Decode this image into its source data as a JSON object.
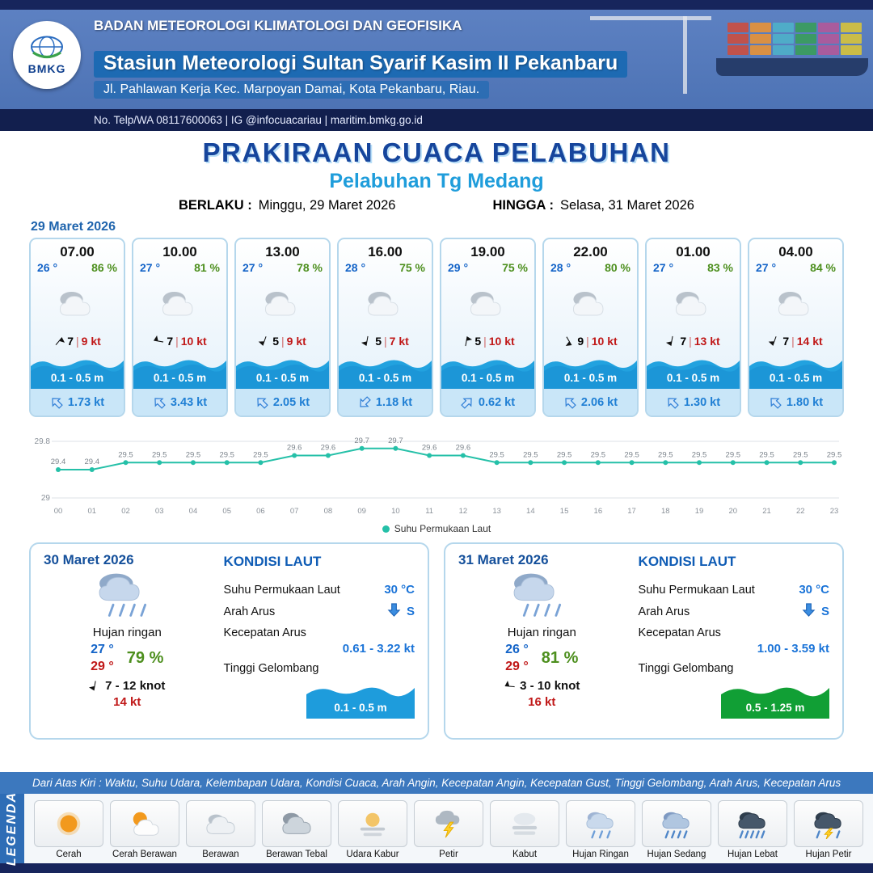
{
  "header": {
    "logo_label": "BMKG",
    "org": "BADAN METEOROLOGI KLIMATOLOGI DAN GEOFISIKA",
    "station": "Stasiun Meteorologi Sultan Syarif Kasim II Pekanbaru",
    "address": "Jl. Pahlawan Kerja Kec. Marpoyan Damai, Kota Pekanbaru, Riau.",
    "contact": "No. Telp/WA 08117600063 | IG @infocuacariau | maritim.bmkg.go.id"
  },
  "title": {
    "main": "PRAKIRAAN CUACA PELABUHAN",
    "sub": "Pelabuhan Tg Medang",
    "berlaku_label": "BERLAKU :",
    "berlaku_value": "Minggu, 29 Maret 2026",
    "hingga_label": "HINGGA :",
    "hingga_value": "Selasa, 31 Maret 2026"
  },
  "forecast_date": "29 Maret 2026",
  "hourly": [
    {
      "time": "07.00",
      "temp": "26 °",
      "humidity": "86 %",
      "wind_speed": "7",
      "gust": "9 kt",
      "wave": "0.1 - 0.5 m",
      "current": "1.73 kt",
      "wind_dir_deg": 40,
      "current_dir_deg": 315
    },
    {
      "time": "10.00",
      "temp": "27 °",
      "humidity": "81 %",
      "wind_speed": "7",
      "gust": "10 kt",
      "wave": "0.1 - 0.5 m",
      "current": "3.43 kt",
      "wind_dir_deg": 280,
      "current_dir_deg": 315
    },
    {
      "time": "13.00",
      "temp": "27 °",
      "humidity": "78 %",
      "wind_speed": "5",
      "gust": "9 kt",
      "wave": "0.1 - 0.5 m",
      "current": "2.05 kt",
      "wind_dir_deg": 200,
      "current_dir_deg": 315
    },
    {
      "time": "16.00",
      "temp": "28 °",
      "humidity": "75 %",
      "wind_speed": "5",
      "gust": "7 kt",
      "wave": "0.1 - 0.5 m",
      "current": "1.18 kt",
      "wind_dir_deg": 190,
      "current_dir_deg": 225
    },
    {
      "time": "19.00",
      "temp": "29 °",
      "humidity": "75 %",
      "wind_speed": "5",
      "gust": "10 kt",
      "wave": "0.1 - 0.5 m",
      "current": "0.62 kt",
      "wind_dir_deg": 10,
      "current_dir_deg": 45
    },
    {
      "time": "22.00",
      "temp": "28 °",
      "humidity": "80 %",
      "wind_speed": "9",
      "gust": "10 kt",
      "wave": "0.1 - 0.5 m",
      "current": "2.06 kt",
      "wind_dir_deg": 150,
      "current_dir_deg": 315
    },
    {
      "time": "01.00",
      "temp": "27 °",
      "humidity": "83 %",
      "wind_speed": "7",
      "gust": "13 kt",
      "wave": "0.1 - 0.5 m",
      "current": "1.30 kt",
      "wind_dir_deg": 190,
      "current_dir_deg": 315
    },
    {
      "time": "04.00",
      "temp": "27 °",
      "humidity": "84 %",
      "wind_speed": "7",
      "gust": "14 kt",
      "wave": "0.1 - 0.5 m",
      "current": "1.80 kt",
      "wind_dir_deg": 200,
      "current_dir_deg": 315
    }
  ],
  "chart_data": {
    "type": "line",
    "legend": "Suhu Permukaan Laut",
    "x": [
      "00",
      "01",
      "02",
      "03",
      "04",
      "05",
      "06",
      "07",
      "08",
      "09",
      "10",
      "11",
      "12",
      "13",
      "14",
      "15",
      "16",
      "17",
      "18",
      "19",
      "20",
      "21",
      "22",
      "23"
    ],
    "values": [
      29.4,
      29.4,
      29.5,
      29.5,
      29.5,
      29.5,
      29.5,
      29.6,
      29.6,
      29.7,
      29.7,
      29.6,
      29.6,
      29.5,
      29.5,
      29.5,
      29.5,
      29.5,
      29.5,
      29.5,
      29.5,
      29.5,
      29.5,
      29.5
    ],
    "ylim": [
      29,
      29.8
    ],
    "line_color": "#25c0a8",
    "grid": true,
    "legend_position": "bottom"
  },
  "daily": [
    {
      "date": "30 Maret 2026",
      "condition": "Hujan ringan",
      "temp_min": "27 °",
      "temp_max": "29 °",
      "humidity": "79 %",
      "wind_range": "7 - 12 knot",
      "gust": "14 kt",
      "wind_dir_deg": 190,
      "sea": {
        "heading": "KONDISI LAUT",
        "sst_label": "Suhu Permukaan Laut",
        "sst": "30 °C",
        "current_dir_label": "Arah Arus",
        "current_dir": "S",
        "current_speed_label": "Kecepatan Arus",
        "current_speed": "0.61 - 3.22 kt",
        "wave_label": "Tinggi Gelombang",
        "wave": "0.1 - 0.5 m",
        "wave_color": "#1e9cdc"
      }
    },
    {
      "date": "31 Maret 2026",
      "condition": "Hujan ringan",
      "temp_min": "26 °",
      "temp_max": "29 °",
      "humidity": "81 %",
      "wind_range": "3 - 10 knot",
      "gust": "16 kt",
      "wind_dir_deg": 275,
      "sea": {
        "heading": "KONDISI LAUT",
        "sst_label": "Suhu Permukaan Laut",
        "sst": "30 °C",
        "current_dir_label": "Arah Arus",
        "current_dir": "S",
        "current_speed_label": "Kecepatan Arus",
        "current_speed": "1.00 - 3.59 kt",
        "wave_label": "Tinggi Gelombang",
        "wave": "0.5 - 1.25 m",
        "wave_color": "#119f35"
      }
    }
  ],
  "legenda": {
    "info": "Dari Atas Kiri : Waktu, Suhu Udara, Kelembapan Udara, Kondisi Cuaca, Arah Angin, Kecepatan Angin, Kecepatan Gust, Tinggi Gelombang, Arah Arus, Kecepatan Arus",
    "title": "LEGENDA",
    "items": [
      {
        "icon": "sun-icon",
        "label": "Cerah"
      },
      {
        "icon": "sun-cloud-icon",
        "label": "Cerah Berawan"
      },
      {
        "icon": "cloud-icon",
        "label": "Berawan"
      },
      {
        "icon": "thick-cloud-icon",
        "label": "Berawan Tebal"
      },
      {
        "icon": "haze-icon",
        "label": "Udara Kabur"
      },
      {
        "icon": "lightning-icon",
        "label": "Petir"
      },
      {
        "icon": "fog-icon",
        "label": "Kabut"
      },
      {
        "icon": "light-rain-icon",
        "label": "Hujan Ringan"
      },
      {
        "icon": "moderate-rain-icon",
        "label": "Hujan Sedang"
      },
      {
        "icon": "heavy-rain-icon",
        "label": "Hujan Lebat"
      },
      {
        "icon": "storm-icon",
        "label": "Hujan Petir"
      }
    ]
  },
  "colors": {
    "navy": "#17255c",
    "header_blue": "#4a70b2",
    "title_blue": "#16459c",
    "subtitle_blue": "#1f9ddb",
    "temp_blue": "#1464c8",
    "humidity_green": "#4d8f1e",
    "gust_red": "#c01818",
    "wave_blue": "#1e9cdc",
    "wave_green": "#119f35",
    "current_blue": "#1f7fd4",
    "chart_line_teal": "#25c0a8"
  }
}
